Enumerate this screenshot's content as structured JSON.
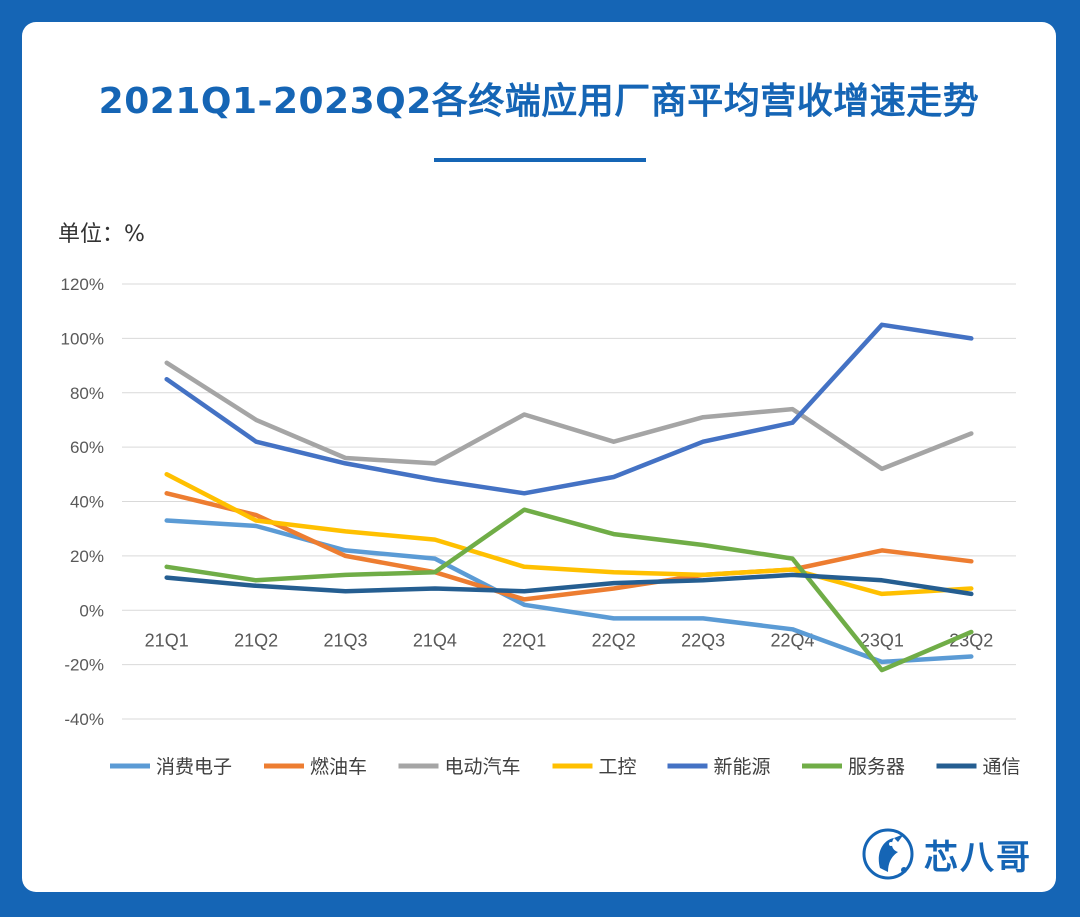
{
  "header": {
    "title": "2021Q1-2023Q2各终端应用厂商平均营收增速走势",
    "unit": "单位：%"
  },
  "brand": {
    "name": "芯八哥",
    "color": "#1565b5"
  },
  "colors": {
    "background": "#1565b5",
    "card": "#ffffff",
    "accent": "#1565b5"
  },
  "chart_data": {
    "type": "line",
    "title": "2021Q1-2023Q2各终端应用厂商平均营收增速走势",
    "xlabel": "",
    "ylabel": "单位：%",
    "categories": [
      "21Q1",
      "21Q2",
      "21Q3",
      "21Q4",
      "22Q1",
      "22Q2",
      "22Q3",
      "22Q4",
      "23Q1",
      "23Q2"
    ],
    "ylim": [
      -40,
      120
    ],
    "yticks": [
      -40,
      -20,
      0,
      20,
      40,
      60,
      80,
      100,
      120
    ],
    "ytick_labels": [
      "-40%",
      "-20%",
      "0%",
      "20%",
      "40%",
      "60%",
      "80%",
      "100%",
      "120%"
    ],
    "grid": true,
    "legend_position": "bottom",
    "series": [
      {
        "name": "消费电子",
        "color": "#5b9bd5",
        "values": [
          33,
          31,
          22,
          19,
          2,
          -3,
          -3,
          -7,
          -19,
          -17
        ]
      },
      {
        "name": "燃油车",
        "color": "#ed7d31",
        "values": [
          43,
          35,
          20,
          14,
          4,
          8,
          13,
          15,
          22,
          18
        ]
      },
      {
        "name": "电动汽车",
        "color": "#a5a5a5",
        "values": [
          91,
          70,
          56,
          54,
          72,
          62,
          71,
          74,
          52,
          65
        ]
      },
      {
        "name": "工控",
        "color": "#ffc000",
        "values": [
          50,
          33,
          29,
          26,
          16,
          14,
          13,
          15,
          6,
          8
        ]
      },
      {
        "name": "新能源",
        "color": "#4472c4",
        "values": [
          85,
          62,
          54,
          48,
          43,
          49,
          62,
          69,
          105,
          100
        ]
      },
      {
        "name": "服务器",
        "color": "#70ad47",
        "values": [
          16,
          11,
          13,
          14,
          37,
          28,
          24,
          19,
          -22,
          -8
        ]
      },
      {
        "name": "通信",
        "color": "#255e91",
        "values": [
          12,
          9,
          7,
          8,
          7,
          10,
          11,
          13,
          11,
          6
        ]
      }
    ]
  }
}
